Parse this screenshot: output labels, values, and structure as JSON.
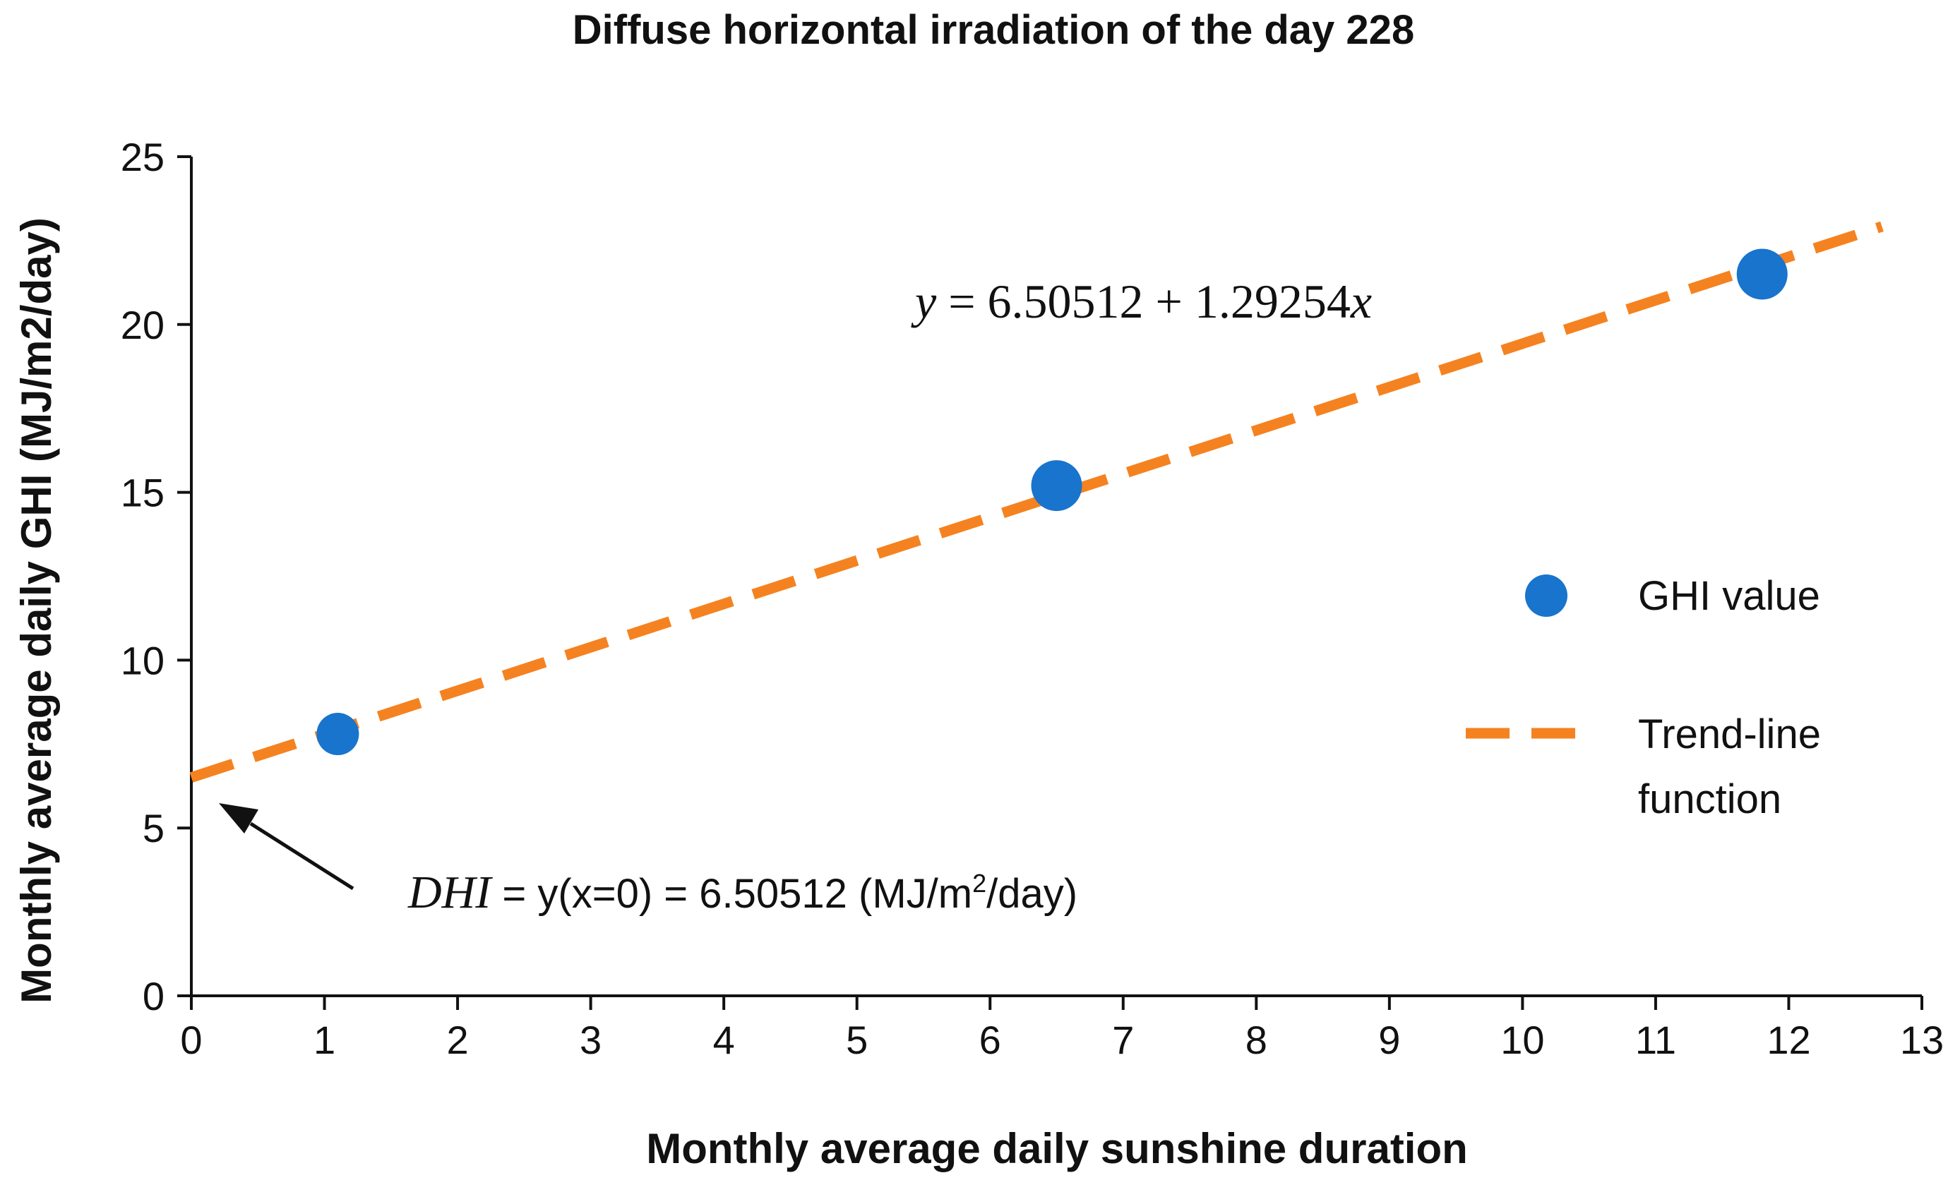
{
  "colors": {
    "points": "#1874cd",
    "trend": "#f58220",
    "axis": "#111111",
    "arrow": "#111111"
  },
  "chart_data": {
    "type": "scatter",
    "title": "Diffuse horizontal irradiation of the day 228",
    "xlabel": "Monthly average daily sunshine duration",
    "ylabel": "Monthly average daily GHI (MJ/m2/day)",
    "xlim": [
      0,
      13
    ],
    "ylim": [
      0,
      25
    ],
    "x_ticks": [
      0,
      1,
      2,
      3,
      4,
      5,
      6,
      7,
      8,
      9,
      10,
      11,
      12,
      13
    ],
    "y_ticks": [
      0,
      5,
      10,
      15,
      20,
      25
    ],
    "grid": false,
    "series": [
      {
        "name": "GHI value",
        "kind": "scatter",
        "x": [
          1.1,
          6.5,
          11.8
        ],
        "y": [
          7.8,
          15.2,
          21.5
        ]
      },
      {
        "name": "Trend-line function",
        "kind": "line",
        "style": "dashed",
        "intercept": 6.50512,
        "slope": 1.29254,
        "x_range": [
          0,
          12.7
        ]
      }
    ],
    "legend": {
      "placement": "right",
      "entries": [
        "GHI value",
        "Trend-line function"
      ]
    },
    "equation": {
      "y_var": "y",
      "equals": " = ",
      "rhs_numbers": "6.50512 + 1.29254",
      "x_var": "x"
    },
    "annotation": {
      "dhi_label": "DHI",
      "text_before_superscript": " = y(x=0) = 6.50512 (MJ/m",
      "superscript": "2",
      "text_after_superscript": "/day)",
      "arrow_target": [
        0,
        6.50512
      ]
    }
  }
}
